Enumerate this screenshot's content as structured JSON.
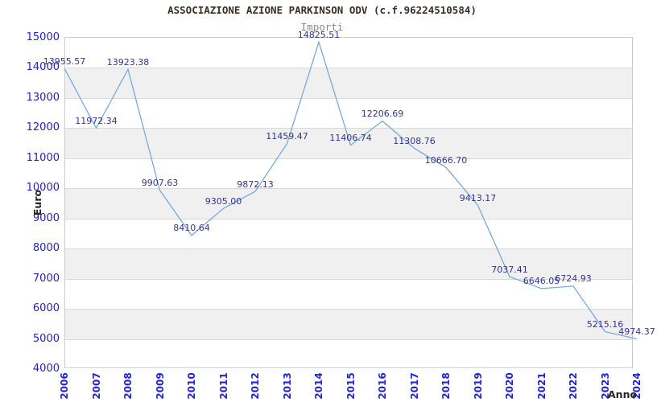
{
  "chart_data": {
    "type": "line",
    "title": "ASSOCIAZIONE AZIONE PARKINSON ODV (c.f.96224510584)",
    "subtitle": "Importi",
    "xlabel": "Anno",
    "ylabel": "Euro",
    "categories": [
      "2006",
      "2007",
      "2008",
      "2009",
      "2010",
      "2011",
      "2012",
      "2013",
      "2014",
      "2015",
      "2016",
      "2017",
      "2018",
      "2019",
      "2020",
      "2021",
      "2022",
      "2023",
      "2024"
    ],
    "series": [
      {
        "name": "Importi",
        "values": [
          13955.57,
          11972.34,
          13923.38,
          9907.63,
          8410.64,
          9305.0,
          9872.13,
          11459.47,
          14825.51,
          11406.74,
          12206.69,
          11308.76,
          10666.7,
          9413.17,
          7037.41,
          6646.05,
          6724.93,
          5215.16,
          4974.37
        ]
      }
    ],
    "ylim": [
      4000,
      15000
    ],
    "ytick_interval": 1000,
    "yticks": [
      4000,
      5000,
      6000,
      7000,
      8000,
      9000,
      10000,
      11000,
      12000,
      13000,
      14000,
      15000
    ],
    "grid": true,
    "legend_position": "none",
    "banding": "alternating horizontal gray bands between 14000-13000, 12000-11000, 10000-9000, 8000-7000, 6000-5000",
    "data_labels": "each point labeled with value to 2 decimals, centered above point",
    "colors": {
      "line": "#78aadd",
      "band": "#f0f0f0",
      "gridline": "#d9d9d9",
      "plot_border": "#cccccc",
      "y_tick_text": "#2222cc",
      "x_tick_text": "#2222dd",
      "data_label_text": "#333399",
      "title_text": "#3a2e26",
      "subtitle_text": "#8c8c8c",
      "axis_title_text": "#262626"
    }
  }
}
